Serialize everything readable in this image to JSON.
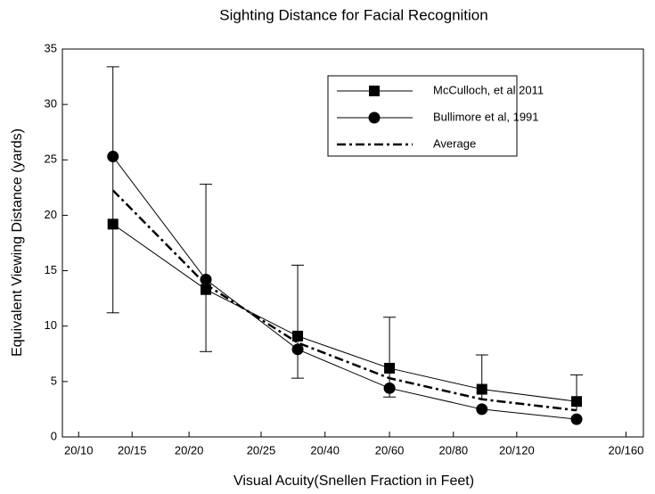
{
  "chart_data": {
    "type": "line",
    "title": "Sighting Distance for Facial Recognition",
    "xlabel": "Visual Acuity(Snellen Fraction in Feet)",
    "ylabel": "Equivalent Viewing Distance (yards)",
    "xlim": [
      0,
      100
    ],
    "xticks": [
      {
        "value": 2.8,
        "label": "20/10"
      },
      {
        "value": 12,
        "label": "20/15"
      },
      {
        "value": 21.8,
        "label": "20/20"
      },
      {
        "value": 34.2,
        "label": "20/25"
      },
      {
        "value": 45.2,
        "label": "20/40"
      },
      {
        "value": 56.3,
        "label": "20/60"
      },
      {
        "value": 67.3,
        "label": "20/80"
      },
      {
        "value": 78.2,
        "label": "20/120"
      },
      {
        "value": 97,
        "label": "20/160"
      }
    ],
    "ylim": [
      0,
      35
    ],
    "yticks": [
      0,
      5,
      10,
      15,
      20,
      25,
      30,
      35
    ],
    "x": [
      8.7,
      24.7,
      40.5,
      56.3,
      72.2,
      88.5
    ],
    "legend": "upper right",
    "series": [
      {
        "name": "McCulloch, et al 2011",
        "color": "#000000",
        "marker": "square",
        "values": [
          19.2,
          13.3,
          9.1,
          6.2,
          4.3,
          3.2
        ]
      },
      {
        "name": "Bullimore et al, 1991",
        "color": "#000000",
        "marker": "circle",
        "values": [
          25.3,
          14.2,
          7.9,
          4.4,
          2.5,
          1.6
        ]
      },
      {
        "name": "Average",
        "color": "#000000",
        "marker": "none",
        "dash": "dashdot",
        "values": [
          22.25,
          13.75,
          8.5,
          5.3,
          3.4,
          2.4
        ],
        "error_high": [
          33.4,
          22.8,
          15.5,
          10.8,
          7.4,
          5.6
        ],
        "error_low": [
          11.2,
          7.7,
          5.3,
          3.6,
          null,
          null
        ]
      }
    ]
  }
}
